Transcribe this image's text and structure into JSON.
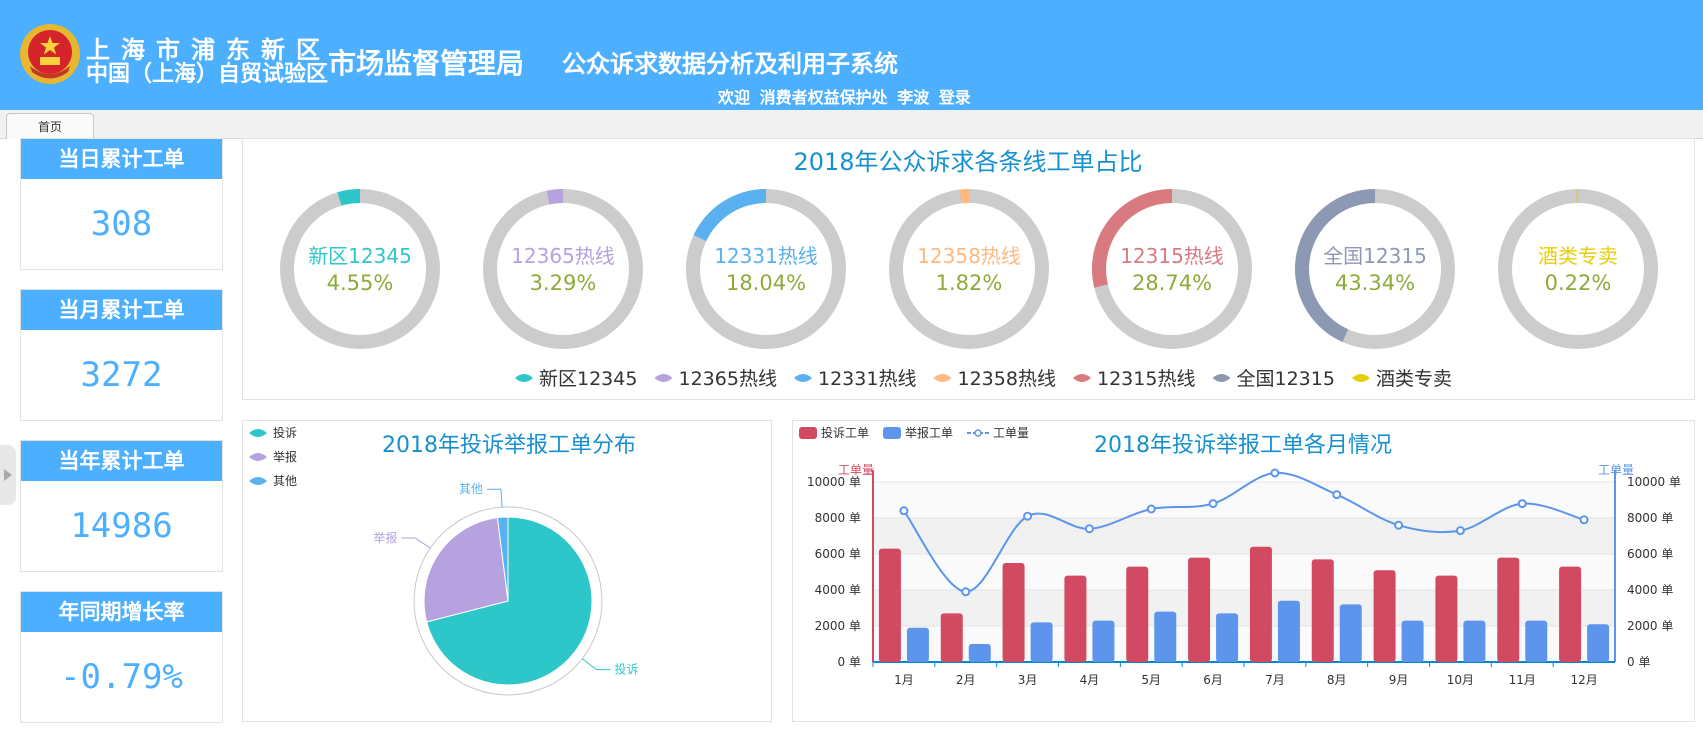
{
  "header": {
    "org_line1": "上海市浦东新区",
    "org_line2": "中国（上海）自贸试验区",
    "org_name": "市场监督管理局",
    "system_title": "公众诉求数据分析及利用子系统",
    "welcome": "欢迎",
    "department": "消费者权益保护处",
    "user": "李波",
    "login": "登录"
  },
  "tabs": [
    {
      "label": "首页"
    }
  ],
  "stats": [
    {
      "label": "当日累计工单",
      "value": "308"
    },
    {
      "label": "当月累计工单",
      "value": "3272"
    },
    {
      "label": "当年累计工单",
      "value": "14986"
    },
    {
      "label": "年同期增长率",
      "value": "-0.79%"
    }
  ],
  "donuts": {
    "title": "2018年公众诉求各条线工单占比",
    "items": [
      {
        "name": "新区12345",
        "percent": "4.55%",
        "value": 4.55,
        "color": "#2ec7c9"
      },
      {
        "name": "12365热线",
        "percent": "3.29%",
        "value": 3.29,
        "color": "#b6a2de"
      },
      {
        "name": "12331热线",
        "percent": "18.04%",
        "value": 18.04,
        "color": "#5ab1ef"
      },
      {
        "name": "12358热线",
        "percent": "1.82%",
        "value": 1.82,
        "color": "#ffb980"
      },
      {
        "name": "12315热线",
        "percent": "28.74%",
        "value": 28.74,
        "color": "#d87a80"
      },
      {
        "name": "全国12315",
        "percent": "43.34%",
        "value": 43.34,
        "color": "#8d98b3"
      },
      {
        "name": "酒类专卖",
        "percent": "0.22%",
        "value": 0.22,
        "color": "#e5cf0d"
      }
    ],
    "value_color": "#8dab3a"
  },
  "pie": {
    "title": "2018年投诉举报工单分布",
    "legend": [
      {
        "name": "投诉",
        "color": "#2ec7c9"
      },
      {
        "name": "举报",
        "color": "#b6a2de"
      },
      {
        "name": "其他",
        "color": "#5ab1ef"
      }
    ]
  },
  "bar": {
    "title": "2018年投诉举报工单各月情况",
    "legend": [
      {
        "name": "投诉工单",
        "color": "#d24a61"
      },
      {
        "name": "举报工单",
        "color": "#5d95ec"
      },
      {
        "name": "工单量",
        "color": "#5d95ec"
      }
    ],
    "y_left_label": "工单量",
    "y_right_label": "工单量"
  },
  "chart_data": [
    {
      "type": "pie",
      "title": "2018年公众诉求各条线工单占比",
      "categories": [
        "新区12345",
        "12365热线",
        "12331热线",
        "12358热线",
        "12315热线",
        "全国12315",
        "酒类专卖"
      ],
      "values": [
        4.55,
        3.29,
        18.04,
        1.82,
        28.74,
        43.34,
        0.22
      ]
    },
    {
      "type": "pie",
      "title": "2018年投诉举报工单分布",
      "categories": [
        "投诉",
        "举报",
        "其他"
      ],
      "values": [
        71,
        27,
        2
      ]
    },
    {
      "type": "bar",
      "title": "2018年投诉举报工单各月情况",
      "categories": [
        "1月",
        "2月",
        "3月",
        "4月",
        "5月",
        "6月",
        "7月",
        "8月",
        "9月",
        "10月",
        "11月",
        "12月"
      ],
      "series": [
        {
          "name": "投诉工单",
          "type": "bar",
          "values": [
            6300,
            2700,
            5500,
            4800,
            5300,
            5800,
            6400,
            5700,
            5100,
            4800,
            5800,
            5300
          ]
        },
        {
          "name": "举报工单",
          "type": "bar",
          "values": [
            1900,
            1000,
            2200,
            2300,
            2800,
            2700,
            3400,
            3200,
            2300,
            2300,
            2300,
            2100
          ]
        },
        {
          "name": "工单量",
          "type": "line",
          "values": [
            8400,
            3900,
            8100,
            7400,
            8500,
            8800,
            10500,
            9300,
            7600,
            7300,
            8800,
            7900
          ]
        }
      ],
      "y_ticks": [
        "0 单",
        "2000 单",
        "4000 单",
        "6000 单",
        "8000 单",
        "10000 单"
      ],
      "ylabel": "工单量",
      "ylim": [
        0,
        10000
      ]
    }
  ]
}
